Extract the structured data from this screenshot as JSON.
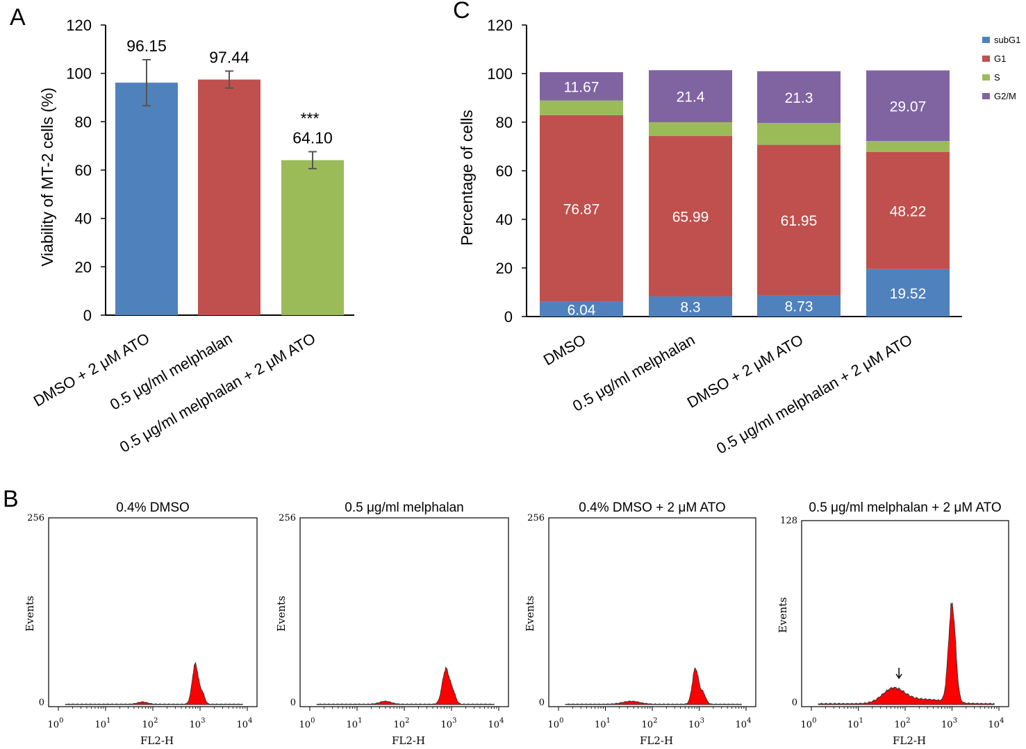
{
  "chart_data": [
    {
      "panel": "A",
      "type": "bar",
      "title": "",
      "ylabel": "Viability of MT-2 cells (%)",
      "xlabel": "",
      "ylim": [
        0,
        120
      ],
      "yticks": [
        "0",
        "20",
        "40",
        "60",
        "80",
        "100",
        "120"
      ],
      "categories": [
        "DMSO + 2 μM ATO",
        "0.5 μg/ml melphalan",
        "0.5 μg/ml melphalan + 2 μM ATO"
      ],
      "values": [
        96.15,
        97.44,
        64.1
      ],
      "value_labels": [
        "96.15",
        "97.44",
        "64.10"
      ],
      "errors": [
        9.5,
        3.5,
        3.5
      ],
      "significance": [
        "",
        "",
        "***"
      ],
      "colors": [
        "#4f81bd",
        "#c0504d",
        "#9bbb59"
      ]
    },
    {
      "panel": "C",
      "type": "bar",
      "stacked": true,
      "title": "",
      "ylabel": "Percentage of cells",
      "xlabel": "",
      "ylim": [
        0,
        120
      ],
      "yticks": [
        "0",
        "20",
        "40",
        "60",
        "80",
        "100",
        "120"
      ],
      "categories": [
        "DMSO",
        "0.5 μg/ml melphalan",
        "DMSO + 2 μM ATO",
        "0.5 μg/ml melphalan + 2 μM ATO"
      ],
      "legend_position": "top-right",
      "series": [
        {
          "name": "subG1",
          "color": "#4f81bd",
          "values": [
            6.04,
            8.3,
            8.73,
            19.52
          ],
          "labels": [
            "6.04",
            "8.3",
            "8.73",
            "19.52"
          ]
        },
        {
          "name": "G1",
          "color": "#c0504d",
          "values": [
            76.87,
            65.99,
            61.95,
            48.22
          ],
          "labels": [
            "76.87",
            "65.99",
            "61.95",
            "48.22"
          ]
        },
        {
          "name": "S",
          "color": "#9bbb59",
          "values": [
            6,
            5.7,
            9,
            4.5
          ],
          "labels": [
            "",
            "",
            "",
            ""
          ]
        },
        {
          "name": "G2/M",
          "color": "#8064a2",
          "values": [
            11.67,
            21.4,
            21.3,
            29.07
          ],
          "labels": [
            "11.67",
            "21.4",
            "21.3",
            "29.07"
          ]
        }
      ]
    },
    {
      "panel": "B",
      "type": "area",
      "subtype": "flow-cytometry-histograms",
      "xlabel": "FL2-H",
      "ylabel": "Events",
      "xscale": "log",
      "xticks": [
        "10",
        "10",
        "10",
        "10",
        "10"
      ],
      "xtick_exponents": [
        "0",
        "1",
        "2",
        "3",
        "4"
      ],
      "fill_color": "#ff0000",
      "histograms": [
        {
          "title": "0.4% DMSO",
          "ymax": 256,
          "ymax_label": "256",
          "ymin_label": "0",
          "peaks": [
            {
              "center": 1.78,
              "width": 0.1,
              "height": 3
            },
            {
              "center": 2.9,
              "width": 0.065,
              "height": 55
            },
            {
              "center": 3.05,
              "width": 0.05,
              "height": 14
            }
          ],
          "arrow": false
        },
        {
          "title": "0.5 μg/ml melphalan",
          "ymax": 256,
          "ymax_label": "256",
          "ymin_label": "0",
          "peaks": [
            {
              "center": 1.6,
              "width": 0.12,
              "height": 4
            },
            {
              "center": 2.88,
              "width": 0.075,
              "height": 48
            },
            {
              "center": 3.03,
              "width": 0.06,
              "height": 15
            }
          ],
          "arrow": false
        },
        {
          "title": "0.4% DMSO + 2 μM ATO",
          "ymax": 256,
          "ymax_label": "256",
          "ymin_label": "0",
          "peaks": [
            {
              "center": 1.55,
              "width": 0.18,
              "height": 4
            },
            {
              "center": 2.92,
              "width": 0.065,
              "height": 49
            },
            {
              "center": 3.08,
              "width": 0.06,
              "height": 15
            }
          ],
          "arrow": false
        },
        {
          "title": "0.5 μg/ml melphalan + 2 μM ATO",
          "ymax": 128,
          "ymax_label": "128",
          "ymin_label": "0",
          "peaks": [
            {
              "center": 1.75,
              "width": 0.23,
              "height": 10
            },
            {
              "center": 2.4,
              "width": 0.45,
              "height": 3
            },
            {
              "center": 3.0,
              "width": 0.075,
              "height": 68
            }
          ],
          "arrow": true
        }
      ]
    }
  ],
  "panel_labels": {
    "a": "A",
    "b": "B",
    "c": "C"
  },
  "significance_label": "***"
}
